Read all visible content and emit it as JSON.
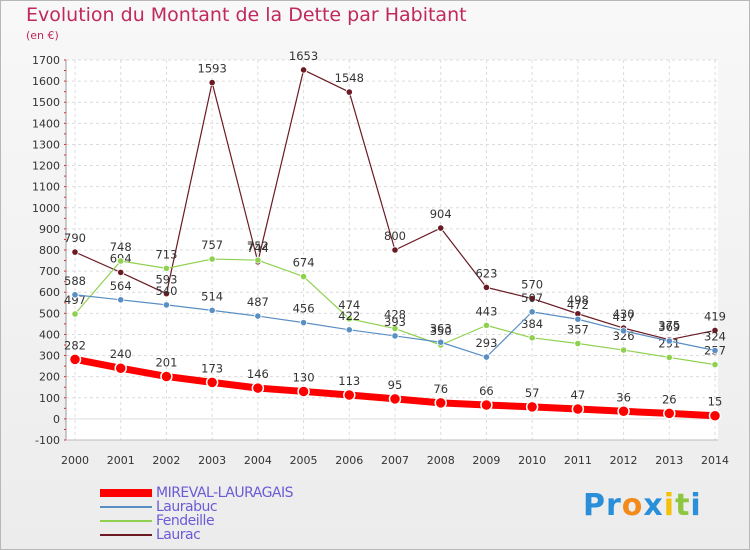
{
  "chart_data": {
    "type": "line",
    "title": "Evolution du Montant de la Dette par Habitant",
    "subtitle": "(en €)",
    "x": [
      2000,
      2001,
      2002,
      2003,
      2004,
      2005,
      2006,
      2007,
      2008,
      2009,
      2010,
      2011,
      2012,
      2013,
      2014
    ],
    "ylim": [
      -100,
      1700
    ],
    "yticks": [
      -100,
      0,
      100,
      200,
      300,
      400,
      500,
      600,
      700,
      800,
      900,
      1000,
      1100,
      1200,
      1300,
      1400,
      1500,
      1600,
      1700
    ],
    "grid": true,
    "legend_position": "bottom-left",
    "series": [
      {
        "name": "Laurac",
        "color": "#6b1a24",
        "values": [
          790,
          694,
          593,
          1593,
          744,
          1653,
          1548,
          800,
          904,
          623,
          570,
          498,
          430,
          375,
          419
        ]
      },
      {
        "name": "Fendeille",
        "color": "#8fd14f",
        "values": [
          497,
          748,
          713,
          757,
          752,
          674,
          474,
          428,
          350,
          443,
          384,
          357,
          326,
          291,
          257
        ]
      },
      {
        "name": "Laurabuc",
        "color": "#5a8fc4",
        "values": [
          588,
          564,
          540,
          514,
          487,
          456,
          422,
          393,
          363,
          293,
          507,
          472,
          417,
          369,
          324
        ]
      },
      {
        "name": "MIREVAL-LAURAGAIS",
        "color": "#ff0000",
        "values": [
          282,
          240,
          201,
          173,
          146,
          130,
          113,
          95,
          76,
          66,
          57,
          47,
          36,
          26,
          15
        ]
      }
    ]
  },
  "legend": [
    {
      "name": "MIREVAL-LAURAGAIS",
      "color": "#ff0000",
      "text_color": "#6b5bd6"
    },
    {
      "name": "Laurabuc",
      "color": "#5a8fc4",
      "text_color": "#6b5bd6"
    },
    {
      "name": "Fendeille",
      "color": "#8fd14f",
      "text_color": "#6b5bd6"
    },
    {
      "name": "Laurac",
      "color": "#6b1a24",
      "text_color": "#6b5bd6"
    }
  ],
  "logo": {
    "letters": [
      "P",
      "r",
      "o",
      "x",
      "i",
      "t",
      "i"
    ],
    "colors": [
      "#2a8ed8",
      "#2a8ed8",
      "#f28a1c",
      "#2a8ed8",
      "#f2c10c",
      "#8dc63f",
      "#2a8ed8"
    ]
  }
}
